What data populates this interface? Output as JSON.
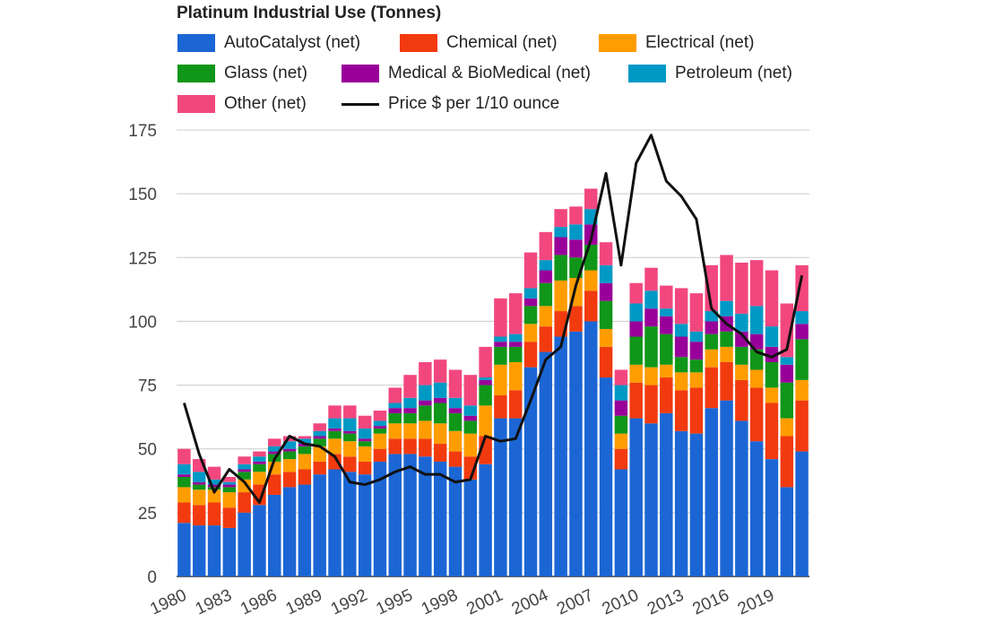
{
  "chart_data": {
    "type": "bar",
    "stacked": true,
    "title": "Platinum Industrial Use (Tonnes)",
    "xlabel": "",
    "ylabel": "",
    "ylim": [
      0,
      175
    ],
    "yticks": [
      0,
      25,
      50,
      75,
      100,
      125,
      150,
      175
    ],
    "xticks": [
      "1980",
      "1983",
      "1986",
      "1989",
      "1992",
      "1995",
      "1998",
      "2001",
      "2004",
      "2007",
      "2010",
      "2013",
      "2016",
      "2019"
    ],
    "grid": true,
    "legend_position": "top",
    "categories": [
      "1980",
      "1981",
      "1982",
      "1983",
      "1984",
      "1985",
      "1986",
      "1987",
      "1988",
      "1989",
      "1990",
      "1991",
      "1992",
      "1993",
      "1994",
      "1995",
      "1996",
      "1997",
      "1998",
      "1999",
      "2000",
      "2001",
      "2002",
      "2003",
      "2004",
      "2005",
      "2006",
      "2007",
      "2008",
      "2009",
      "2010",
      "2011",
      "2012",
      "2013",
      "2014",
      "2015",
      "2016",
      "2017",
      "2018",
      "2019",
      "2020",
      "2021"
    ],
    "series": [
      {
        "name": "AutoCatalyst (net)",
        "color": "#1b66d4",
        "values": [
          21,
          20,
          20,
          19,
          25,
          28,
          32,
          35,
          36,
          40,
          42,
          41,
          40,
          45,
          48,
          48,
          47,
          45,
          43,
          38,
          44,
          62,
          62,
          82,
          88,
          94,
          96,
          100,
          78,
          42,
          62,
          60,
          64,
          57,
          56,
          66,
          69,
          61,
          53,
          46,
          35,
          49
        ]
      },
      {
        "name": "Chemical (net)",
        "color": "#f23a0f",
        "values": [
          8,
          8,
          9,
          8,
          8,
          8,
          8,
          6,
          6,
          5,
          6,
          6,
          5,
          5,
          6,
          6,
          7,
          7,
          6,
          9,
          11,
          9,
          11,
          10,
          10,
          10,
          10,
          12,
          12,
          8,
          14,
          15,
          14,
          16,
          18,
          16,
          15,
          16,
          21,
          22,
          20,
          20
        ]
      },
      {
        "name": "Electrical (net)",
        "color": "#ff9d00",
        "values": [
          6,
          6,
          5,
          6,
          5,
          5,
          5,
          5,
          6,
          6,
          6,
          6,
          6,
          6,
          6,
          6,
          7,
          8,
          8,
          9,
          12,
          12,
          11,
          7,
          8,
          12,
          11,
          8,
          7,
          6,
          7,
          7,
          5,
          7,
          6,
          7,
          6,
          6,
          7,
          6,
          7,
          8
        ]
      },
      {
        "name": "Glass (net)",
        "color": "#109618",
        "values": [
          4,
          2,
          1,
          2,
          3,
          3,
          3,
          3,
          3,
          3,
          3,
          3,
          2,
          2,
          4,
          4,
          6,
          8,
          7,
          5,
          8,
          7,
          6,
          7,
          9,
          10,
          8,
          10,
          11,
          7,
          11,
          16,
          12,
          6,
          5,
          6,
          6,
          7,
          8,
          10,
          14,
          16
        ]
      },
      {
        "name": "Medical & BioMedical (net)",
        "color": "#990099",
        "values": [
          1,
          1,
          1,
          1,
          1,
          1,
          1,
          1,
          1,
          1,
          1,
          1,
          1,
          1,
          2,
          2,
          2,
          2,
          2,
          2,
          2,
          2,
          2,
          3,
          5,
          7,
          7,
          8,
          7,
          6,
          6,
          7,
          7,
          8,
          7,
          5,
          6,
          6,
          6,
          6,
          7,
          6
        ]
      },
      {
        "name": "Petroleum (net)",
        "color": "#0099c6",
        "values": [
          4,
          4,
          2,
          1,
          2,
          2,
          2,
          3,
          2,
          2,
          4,
          5,
          4,
          2,
          2,
          4,
          6,
          6,
          4,
          4,
          1,
          2,
          3,
          4,
          4,
          4,
          6,
          6,
          7,
          6,
          7,
          7,
          3,
          5,
          4,
          4,
          6,
          7,
          11,
          8,
          3,
          5
        ]
      },
      {
        "name": "Other (net)",
        "color": "#f2477e",
        "values": [
          6,
          5,
          5,
          2,
          3,
          2,
          3,
          2,
          1,
          3,
          5,
          5,
          5,
          4,
          6,
          9,
          9,
          9,
          11,
          12,
          12,
          15,
          16,
          14,
          11,
          7,
          7,
          8,
          9,
          6,
          8,
          9,
          9,
          14,
          15,
          18,
          18,
          20,
          18,
          22,
          21,
          18
        ]
      }
    ],
    "line_series": {
      "name": "Price $ per 1/10 ounce",
      "color": "#111111",
      "values": [
        68,
        48,
        33,
        42,
        37,
        29,
        46,
        55,
        52,
        51,
        47,
        37,
        36,
        38,
        41,
        43,
        40,
        40,
        37,
        38,
        55,
        53,
        54,
        69,
        85,
        90,
        114,
        132,
        158,
        122,
        162,
        173,
        155,
        149,
        140,
        105,
        99,
        95,
        88,
        86,
        89,
        118
      ]
    }
  }
}
